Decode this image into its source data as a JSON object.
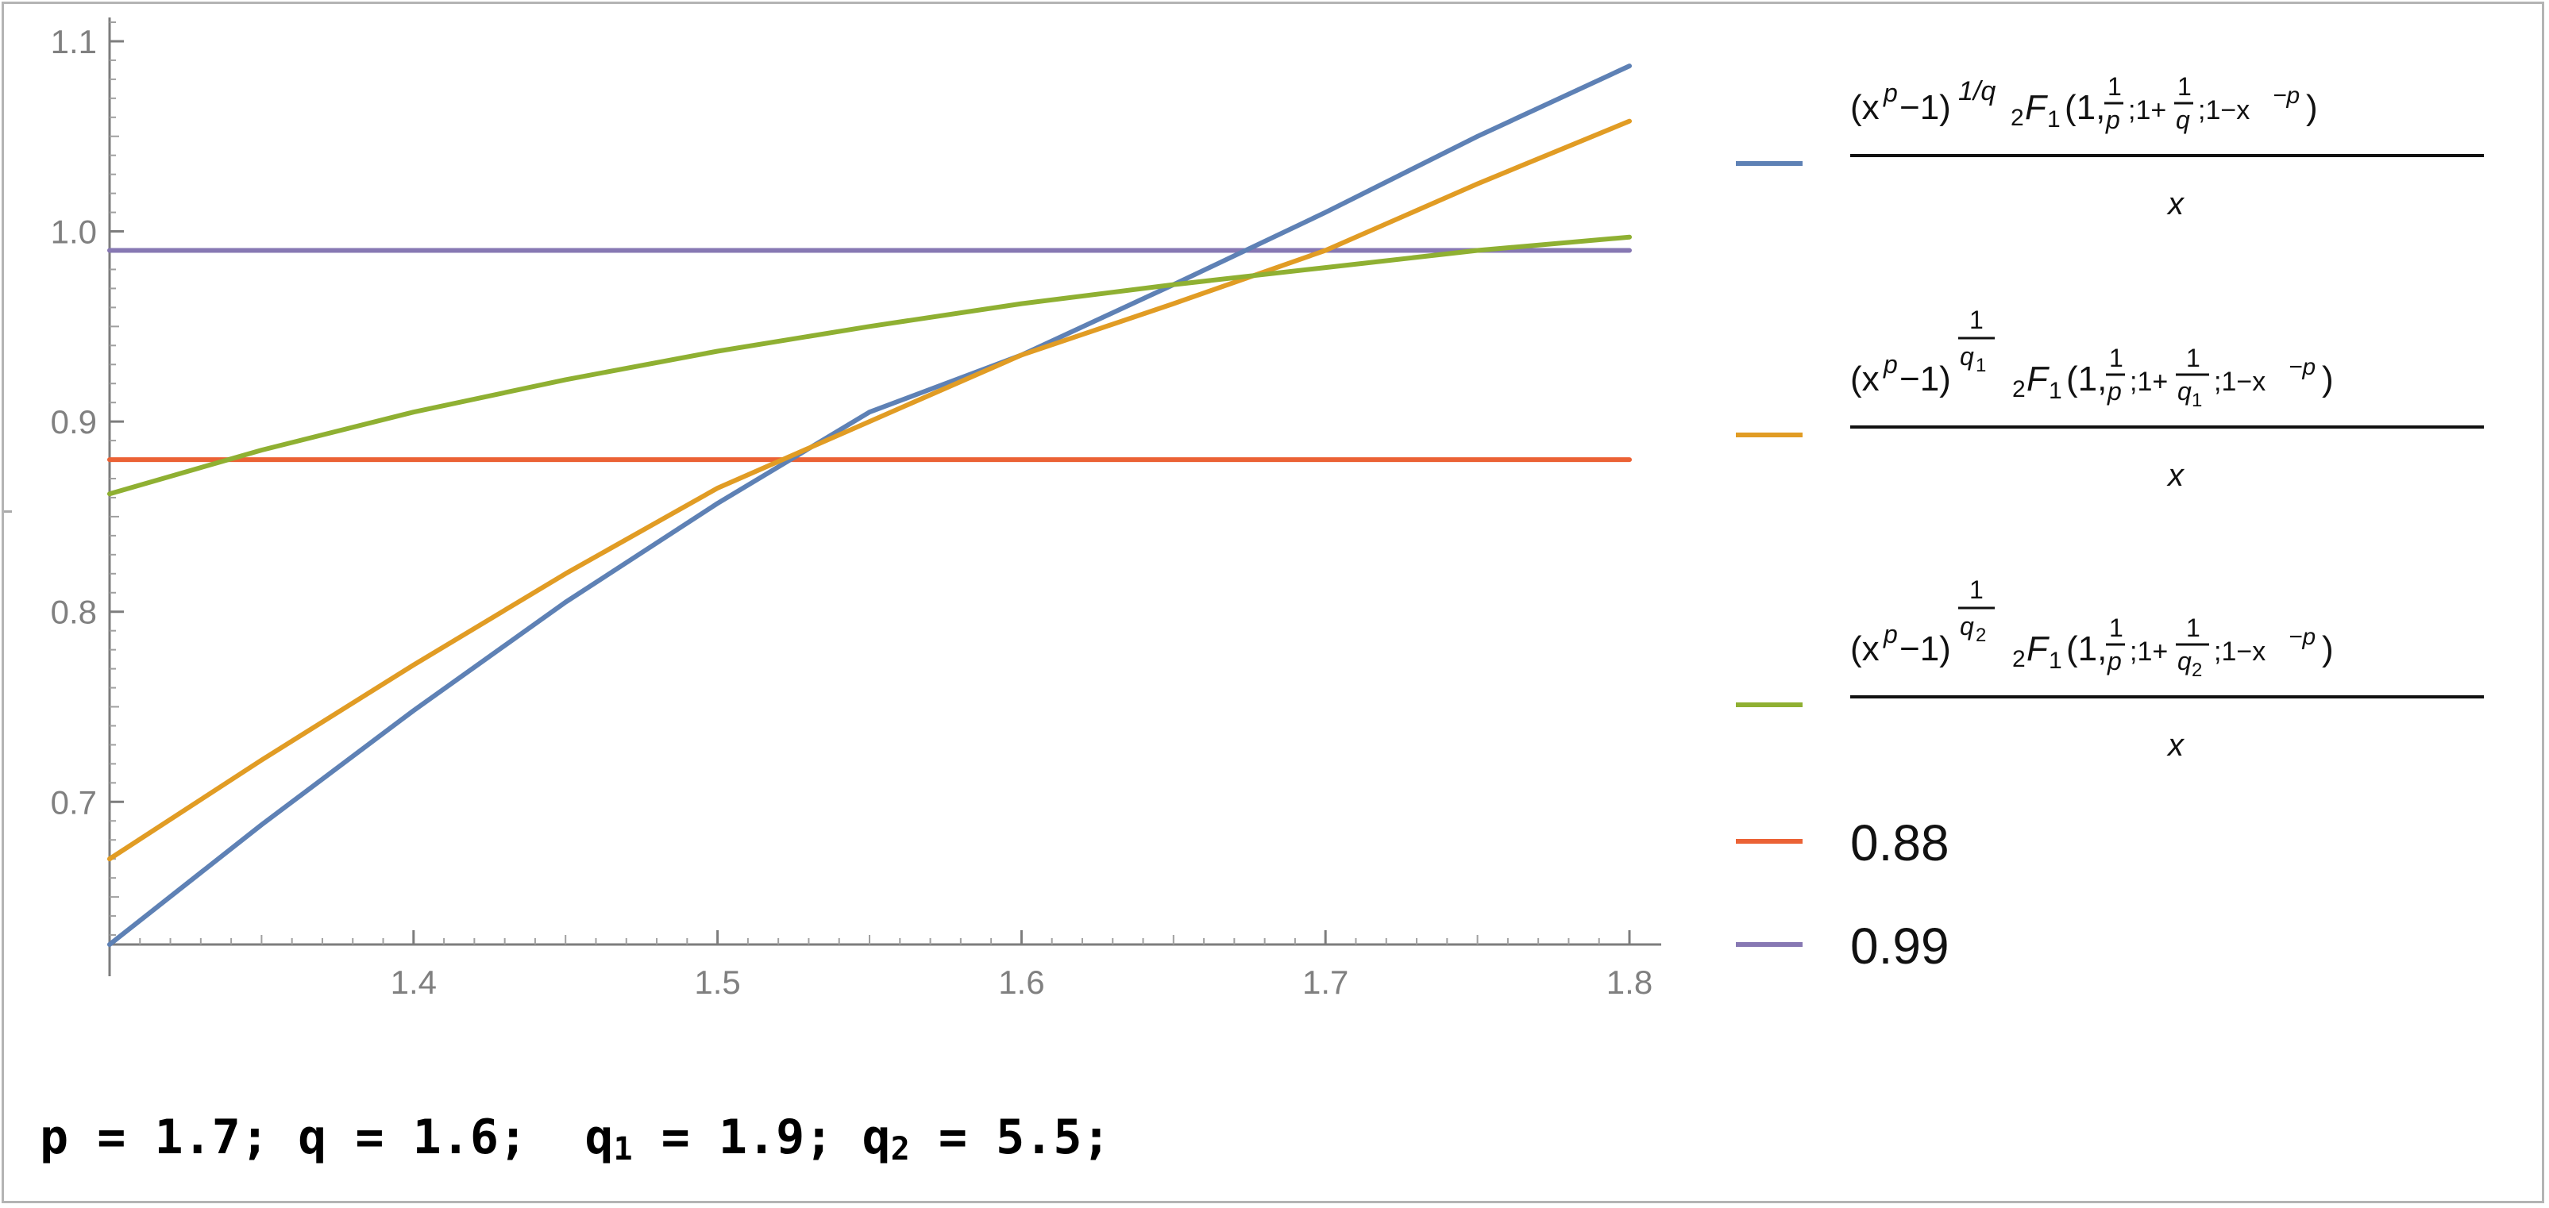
{
  "chart_data": {
    "type": "line",
    "title": "",
    "xlabel": "",
    "ylabel": "",
    "xlim": [
      1.3,
      1.8
    ],
    "ylim": [
      0.625,
      1.11
    ],
    "x_ticks": [
      1.4,
      1.5,
      1.6,
      1.7,
      1.8
    ],
    "x_tick_labels": [
      "1.4",
      "1.5",
      "1.6",
      "1.7",
      "1.8"
    ],
    "y_ticks": [
      0.7,
      0.8,
      0.9,
      1.0,
      1.1
    ],
    "y_tick_labels": [
      "0.7",
      "0.8",
      "0.9",
      "1.0",
      "1.1"
    ],
    "grid": false,
    "legend_position": "right",
    "x": [
      1.3,
      1.35,
      1.4,
      1.45,
      1.5,
      1.55,
      1.6,
      1.65,
      1.7,
      1.75,
      1.8
    ],
    "series": [
      {
        "color": "#5e81b5",
        "values": [
          0.625,
          0.688,
          0.748,
          0.805,
          0.857,
          0.905,
          0.935,
          0.972,
          1.01,
          1.05,
          1.087
        ],
        "legend": {
          "num": "(x",
          "num_sup": "p",
          "num_mid": "−1)",
          "num_exp": "1/q",
          "func_pre": "2",
          "func": "F",
          "func_sub": "1",
          "args_a": "(1,",
          "args_b": ";1+",
          "args_c": ";1−x",
          "args_exp": "−p",
          "args_close": ")",
          "frac_num": "1",
          "frac_den_p": "p",
          "frac_den_q": "q",
          "den": "x"
        }
      },
      {
        "color": "#e19c24",
        "values": [
          0.67,
          0.722,
          0.772,
          0.82,
          0.865,
          0.9,
          0.935,
          0.962,
          0.99,
          1.025,
          1.058
        ],
        "legend": {
          "num": "(x",
          "num_sup": "p",
          "num_mid": "−1)",
          "exp_num": "1",
          "exp_den": "q",
          "exp_den_sub": "1",
          "func_pre": "2",
          "func": "F",
          "func_sub": "1",
          "args_a": "(1,",
          "args_b": ";1+",
          "args_c": ";1−x",
          "args_exp": "−p",
          "args_close": ")",
          "frac_num": "1",
          "frac_den_p": "p",
          "frac_den_q": "q",
          "frac_den_q_sub": "1",
          "den": "x"
        }
      },
      {
        "color": "#8fb032",
        "values": [
          0.862,
          0.885,
          0.905,
          0.922,
          0.937,
          0.95,
          0.962,
          0.972,
          0.981,
          0.99,
          0.997
        ],
        "legend": {
          "num": "(x",
          "num_sup": "p",
          "num_mid": "−1)",
          "exp_num": "1",
          "exp_den": "q",
          "exp_den_sub": "2",
          "func_pre": "2",
          "func": "F",
          "func_sub": "1",
          "args_a": "(1,",
          "args_b": ";1+",
          "args_c": ";1−x",
          "args_exp": "−p",
          "args_close": ")",
          "frac_num": "1",
          "frac_den_p": "p",
          "frac_den_q": "q",
          "frac_den_q_sub": "2",
          "den": "x"
        }
      },
      {
        "color": "#eb6235",
        "values": [
          0.88,
          0.88,
          0.88,
          0.88,
          0.88,
          0.88,
          0.88,
          0.88,
          0.88,
          0.88,
          0.88
        ],
        "legend": {
          "label": "0.88"
        }
      },
      {
        "color": "#8778b3",
        "values": [
          0.99,
          0.99,
          0.99,
          0.99,
          0.99,
          0.99,
          0.99,
          0.99,
          0.99,
          0.99,
          0.99
        ],
        "legend": {
          "label": "0.99"
        }
      }
    ]
  },
  "params": {
    "p_part": "p = 1.7; q = 1.6;  q",
    "q1_sub": "1",
    "q1_part": " = 1.9; q",
    "q2_sub": "2",
    "q2_part": " = 5.5;"
  }
}
